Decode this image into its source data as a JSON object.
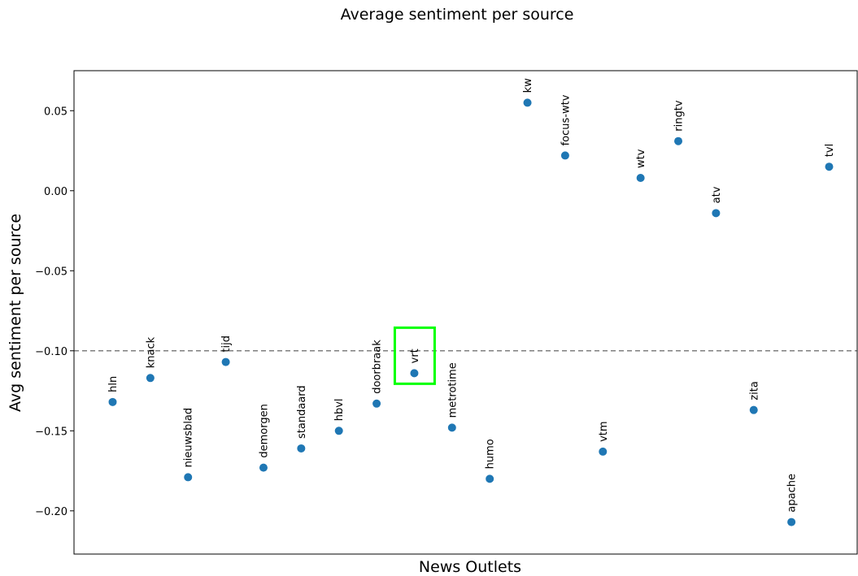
{
  "chart_data": {
    "type": "scatter",
    "title": "Average sentiment per source",
    "xlabel": "News Outlets",
    "ylabel": "Avg sentiment per source",
    "ylim": [
      -0.227,
      0.075
    ],
    "yticks": [
      0.05,
      0.0,
      -0.05,
      -0.1,
      -0.15,
      -0.2
    ],
    "ytick_labels": [
      "0.05",
      "0.00",
      "−0.05",
      "−0.10",
      "−0.15",
      "−0.20"
    ],
    "reference_line": {
      "y": -0.1,
      "style": "dashed",
      "color": "#7f7f7f"
    },
    "point_color": "#1f77b4",
    "highlight": {
      "label": "vrt",
      "color": "#00ff00"
    },
    "grid": false,
    "points": [
      {
        "label": "hln",
        "value": -0.132
      },
      {
        "label": "knack",
        "value": -0.117
      },
      {
        "label": "nieuwsblad",
        "value": -0.179
      },
      {
        "label": "tijd",
        "value": -0.107
      },
      {
        "label": "demorgen",
        "value": -0.173
      },
      {
        "label": "standaard",
        "value": -0.161
      },
      {
        "label": "hbvl",
        "value": -0.15
      },
      {
        "label": "doorbraak",
        "value": -0.133
      },
      {
        "label": "vrt",
        "value": -0.114
      },
      {
        "label": "metrotime",
        "value": -0.148
      },
      {
        "label": "humo",
        "value": -0.18
      },
      {
        "label": "kw",
        "value": 0.055
      },
      {
        "label": "focus-wtv",
        "value": 0.022
      },
      {
        "label": "vtm",
        "value": -0.163
      },
      {
        "label": "wtv",
        "value": 0.008
      },
      {
        "label": "ringtv",
        "value": 0.031
      },
      {
        "label": "atv",
        "value": -0.014
      },
      {
        "label": "zita",
        "value": -0.137
      },
      {
        "label": "apache",
        "value": -0.207
      },
      {
        "label": "tvl",
        "value": 0.015
      }
    ]
  }
}
